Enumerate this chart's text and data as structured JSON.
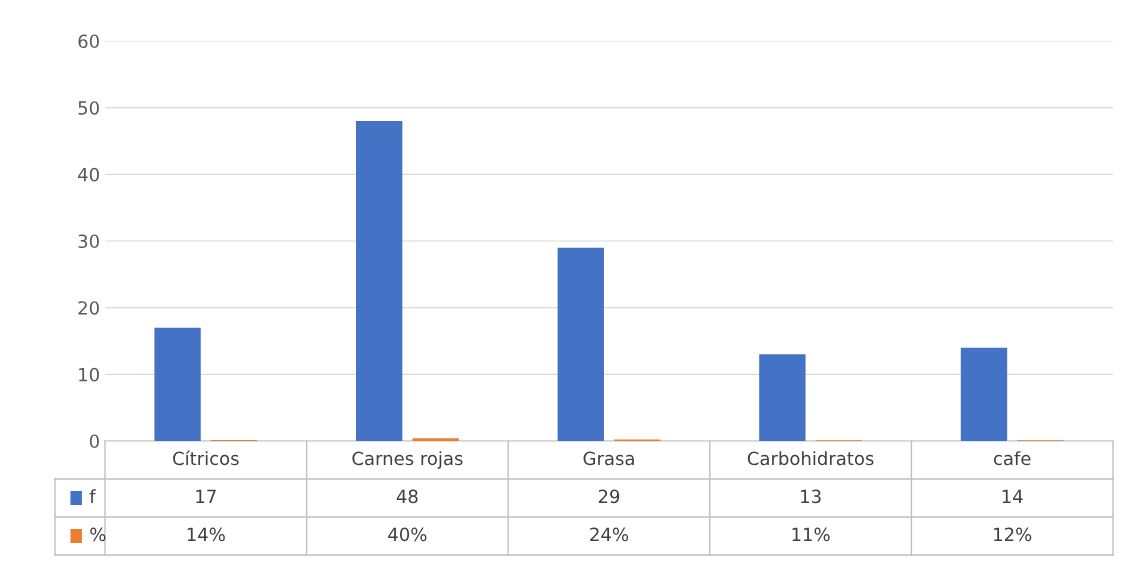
{
  "chart_data": {
    "type": "bar",
    "categories": [
      "Cítricos",
      "Carnes rojas",
      "Grasa",
      "Carbohidratos",
      "cafe"
    ],
    "series": [
      {
        "name": "f",
        "color": "#4472c4",
        "values": [
          17,
          48,
          29,
          13,
          14
        ],
        "value_labels": [
          "17",
          "48",
          "29",
          "13",
          "14"
        ]
      },
      {
        "name": "%",
        "color": "#ed7d31",
        "values": [
          0.14,
          0.4,
          0.24,
          0.11,
          0.12
        ],
        "value_labels": [
          "14%",
          "40%",
          "24%",
          "11%",
          "12%"
        ]
      }
    ],
    "ylim": [
      0,
      60
    ],
    "yticks": [
      0,
      10,
      20,
      30,
      40,
      50,
      60
    ],
    "grid": "y",
    "legend": "bottom"
  }
}
